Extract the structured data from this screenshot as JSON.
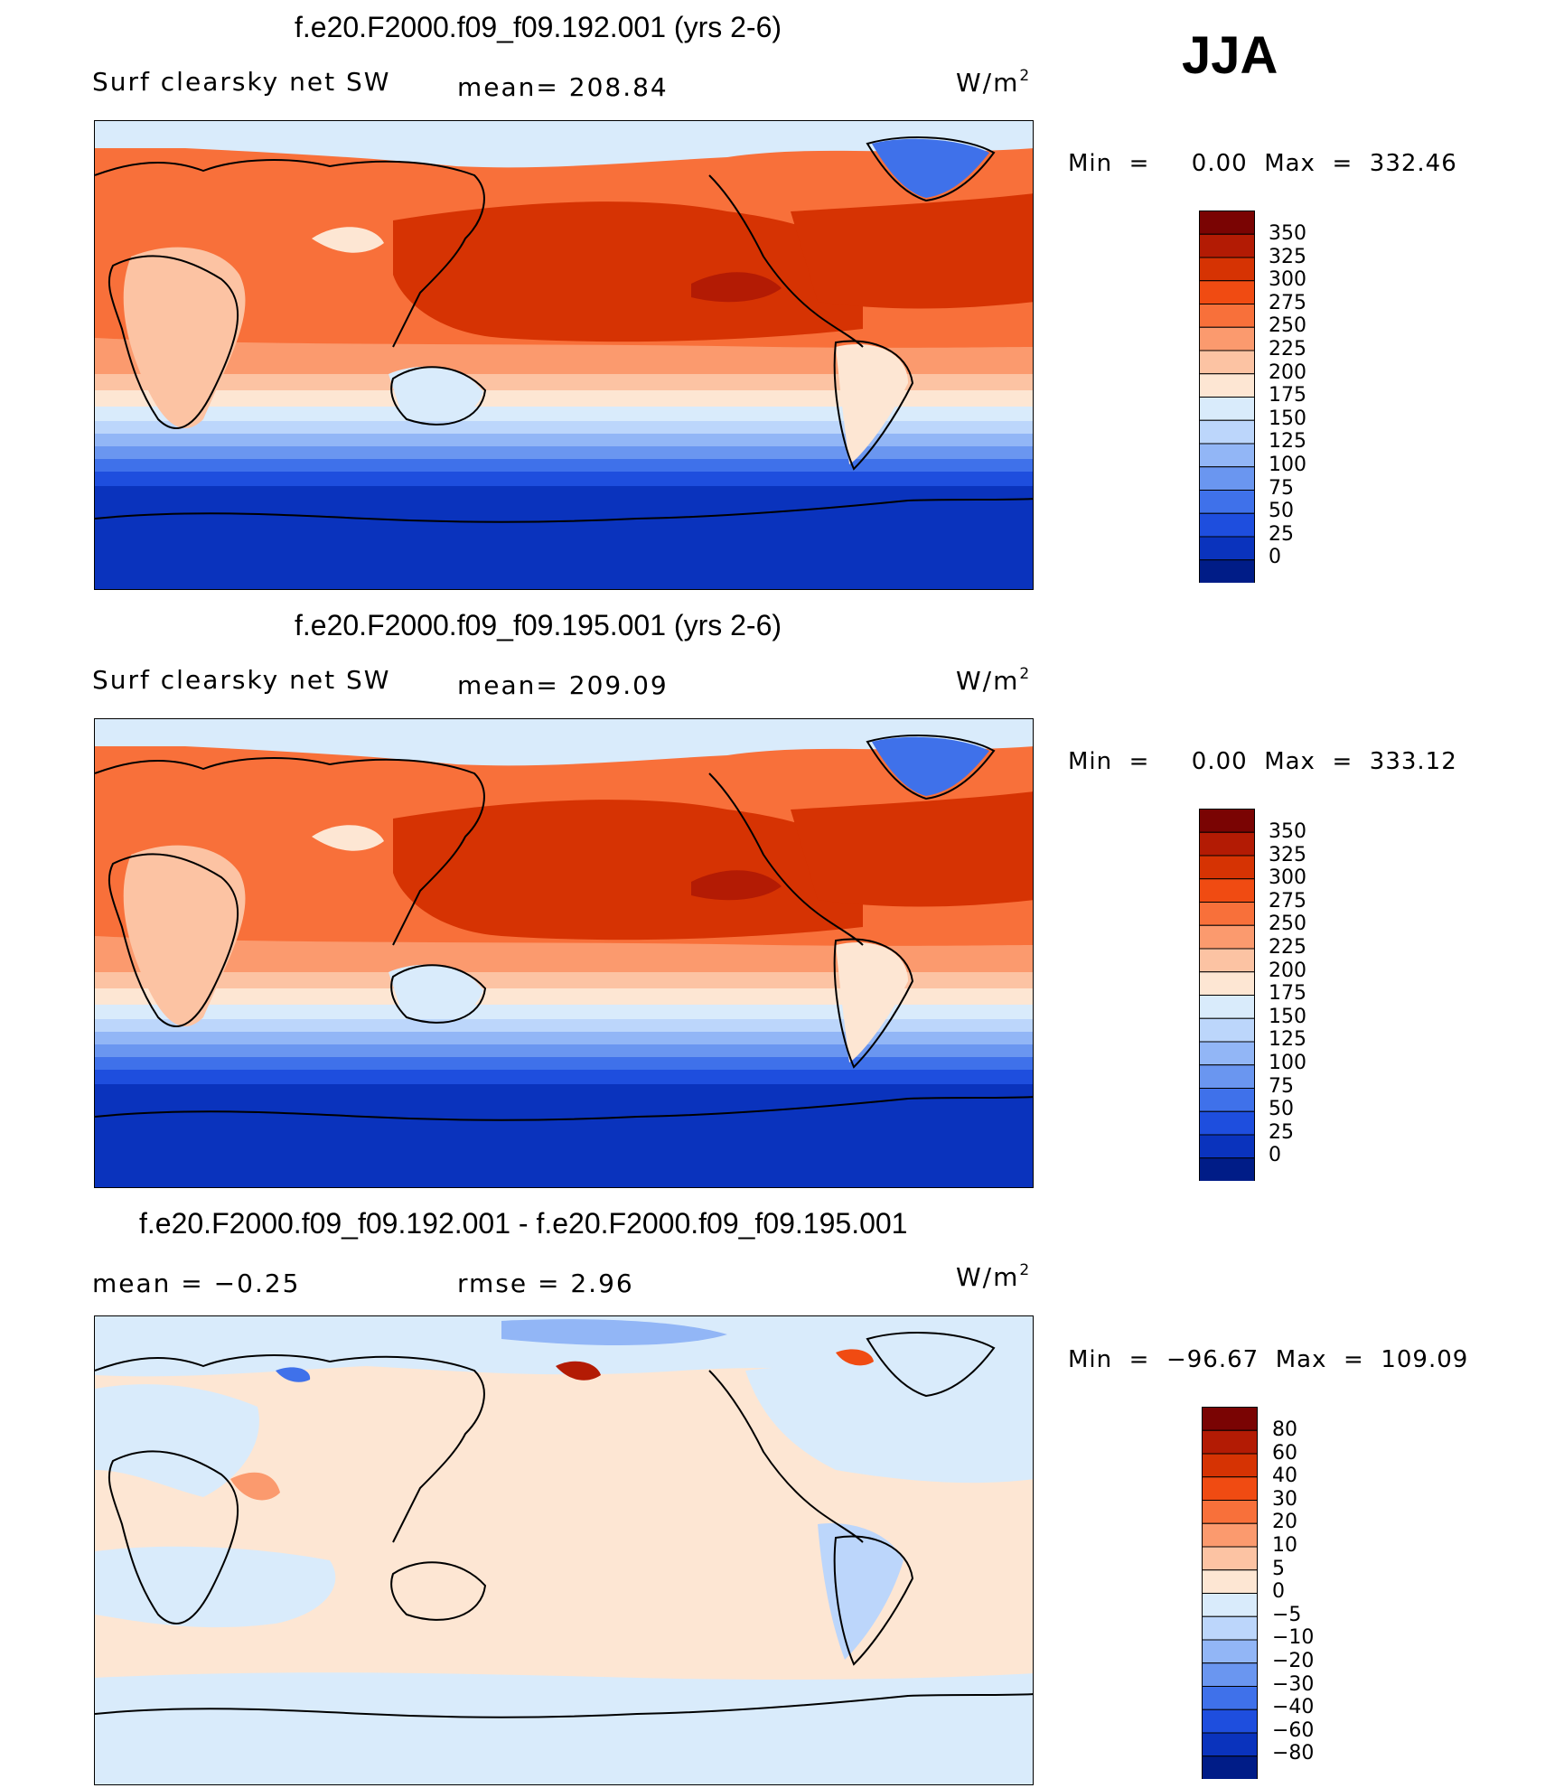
{
  "season": "JJA",
  "panels": [
    {
      "title": "f.e20.F2000.f09_f09.192.001 (yrs 2-6)",
      "left_label": "Surf  clearsky  net  SW",
      "center_label": "mean=  208.84",
      "units": "W/m",
      "units_sup": "2",
      "minmax": "Min  =     0.00  Max  =  332.46"
    },
    {
      "title": "f.e20.F2000.f09_f09.195.001 (yrs 2-6)",
      "left_label": "Surf  clearsky  net  SW",
      "center_label": "mean=  209.09",
      "units": "W/m",
      "units_sup": "2",
      "minmax": "Min  =     0.00  Max  =  333.12"
    },
    {
      "title": "f.e20.F2000.f09_f09.192.001 - f.e20.F2000.f09_f09.195.001",
      "left_label": "mean  =    −0.25",
      "center_label": "rmse  =     2.96",
      "units": "W/m",
      "units_sup": "2",
      "minmax": "Min  =  −96.67  Max  =  109.09"
    }
  ],
  "chart_data": [
    {
      "type": "heatmap",
      "title": "f.e20.F2000.f09_f09.192.001 (yrs 2-6)",
      "variable": "Surf clearsky net SW",
      "units": "W/m2",
      "mean": 208.84,
      "min": 0.0,
      "max": 332.46,
      "colorbar_levels": [
        350,
        325,
        300,
        275,
        250,
        225,
        200,
        175,
        150,
        125,
        100,
        75,
        50,
        25,
        0
      ]
    },
    {
      "type": "heatmap",
      "title": "f.e20.F2000.f09_f09.195.001 (yrs 2-6)",
      "variable": "Surf clearsky net SW",
      "units": "W/m2",
      "mean": 209.09,
      "min": 0.0,
      "max": 333.12,
      "colorbar_levels": [
        350,
        325,
        300,
        275,
        250,
        225,
        200,
        175,
        150,
        125,
        100,
        75,
        50,
        25,
        0
      ]
    },
    {
      "type": "heatmap",
      "title": "f.e20.F2000.f09_f09.192.001 - f.e20.F2000.f09_f09.195.001",
      "units": "W/m2",
      "mean": -0.25,
      "rmse": 2.96,
      "min": -96.67,
      "max": 109.09,
      "colorbar_levels": [
        "80",
        "60",
        "40",
        "30",
        "20",
        "10",
        "5",
        "0",
        "−5",
        "−10",
        "−20",
        "−30",
        "−40",
        "−60",
        "−80"
      ]
    }
  ],
  "colors": {
    "seq": [
      "#7a0403",
      "#b31b04",
      "#d63303",
      "#f04b12",
      "#f8703a",
      "#fb9a6e",
      "#fcc3a3",
      "#fde6d3",
      "#d9ebfb",
      "#bcd6fb",
      "#92b6f6",
      "#6a96f0",
      "#3f71ea",
      "#1e4ede",
      "#0a33bd",
      "#001c87"
    ],
    "diff": [
      "#7a0403",
      "#b31b04",
      "#d63303",
      "#f04b12",
      "#f8703a",
      "#fb9a6e",
      "#fcc3a3",
      "#fde6d3",
      "#d9ebfb",
      "#bcd6fb",
      "#92b6f6",
      "#6a96f0",
      "#3f71ea",
      "#1e4ede",
      "#0a33bd",
      "#001c87"
    ]
  }
}
